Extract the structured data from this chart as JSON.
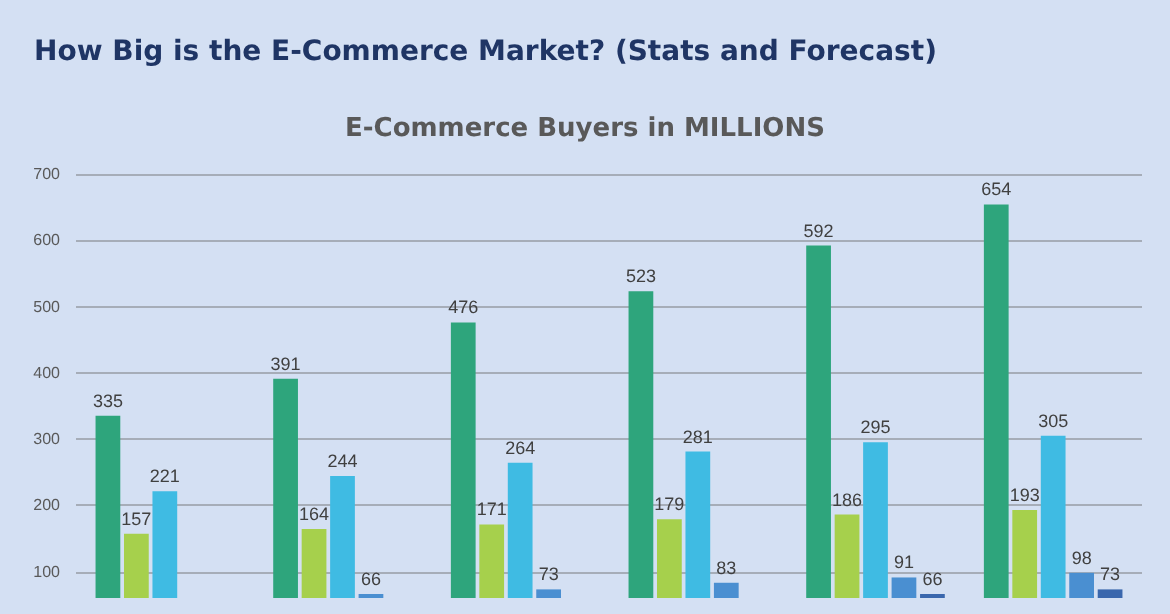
{
  "chart_data": {
    "type": "bar",
    "title": "How Big is the E-Commerce Market? (Stats and Forecast)",
    "subtitle": "E-Commerce Buyers in MILLIONS",
    "categories": [
      null,
      null,
      null,
      null,
      null,
      null
    ],
    "series": [
      {
        "color": "#2ea57c",
        "values": [
          335,
          391,
          476,
          523,
          592,
          654
        ]
      },
      {
        "color": "#a6d04c",
        "values": [
          157,
          164,
          171,
          179,
          186,
          193
        ]
      },
      {
        "color": "#3fbbe3",
        "values": [
          221,
          244,
          264,
          281,
          295,
          305
        ]
      },
      {
        "color": "#4a8fd1",
        "values": [
          null,
          66,
          73,
          83,
          91,
          98
        ]
      },
      {
        "color": "#3a67ad",
        "values": [
          null,
          null,
          null,
          null,
          66,
          73
        ]
      }
    ],
    "ylim": [
      60,
      700
    ],
    "yticks": [
      100,
      200,
      300,
      400,
      500,
      600,
      700
    ],
    "grid": "y",
    "data_labels": true
  }
}
